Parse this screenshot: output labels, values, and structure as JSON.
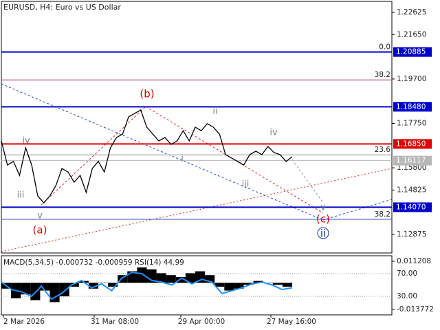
{
  "chart_data": {
    "type": "line",
    "title": "EURUSD, H4:  Euro vs US Dollar",
    "values": [
      1.1698,
      1.1592,
      1.1608,
      1.1547,
      1.1668,
      1.1592,
      1.1457,
      1.1426,
      1.1457,
      1.1502,
      1.1577,
      1.1562,
      1.1517,
      1.1547,
      1.1472,
      1.1577,
      1.1608,
      1.1562,
      1.1668,
      1.1713,
      1.1728,
      1.1804,
      1.1819,
      1.1834,
      1.1758,
      1.1728,
      1.1698,
      1.1713,
      1.1683,
      1.1698,
      1.1743,
      1.1698,
      1.1758,
      1.1743,
      1.1774,
      1.1758,
      1.1728,
      1.1638,
      1.1623,
      1.1608,
      1.1592,
      1.1638,
      1.1653,
      1.1638,
      1.1674,
      1.1647,
      1.1638,
      1.1608,
      1.1629
    ],
    "color": "#000000",
    "ylim": [
      1.12061,
      1.23168
    ],
    "yticks": [
      1.22625,
      {
        "value": 1.2165,
        "label": "1.21650"
      },
      {
        "value": 1.197,
        "label": "1.19700"
      },
      {
        "value": 1.1775,
        "label": "1.17750"
      },
      {
        "value": 1.158,
        "label": "1.15800"
      },
      1.14825,
      1.12875
    ],
    "levels": [
      {
        "value": 1.20885,
        "label": "1.20885",
        "color": "#0000cc"
      },
      {
        "value": 1.1848,
        "label": "1.18480",
        "color": "#0000cc"
      },
      {
        "value": 1.1685,
        "label": "1.16850",
        "color": "#e00000"
      },
      {
        "value": 1.16117,
        "label": "1.16117",
        "color": "#b8b8b8"
      },
      {
        "value": 1.1407,
        "label": "1.14070",
        "color": "#0000cc"
      }
    ],
    "fib_levels": [
      {
        "label": "0.0",
        "price": 1.20885,
        "color": "#0000cc"
      },
      {
        "label": "38.2",
        "price": 1.1966,
        "color": "#a0306a"
      },
      {
        "label": "23.6",
        "price": 1.1637,
        "color": "#909090"
      },
      {
        "label": "38.2",
        "price": 1.1354,
        "color": "#3050c0"
      }
    ],
    "wave_labels": [
      {
        "text": "(b)",
        "color": "#e00000"
      },
      {
        "text": "(a)",
        "color": "#e00000"
      },
      {
        "text": "(c)",
        "color": "#e00000"
      },
      {
        "text": "ii",
        "color": "#1030c0"
      },
      {
        "text": "iv",
        "color": "#808080"
      },
      {
        "text": "iii",
        "color": "#808080"
      },
      {
        "text": "v",
        "color": "#808080"
      },
      {
        "text": "ii",
        "color": "#808080"
      },
      {
        "text": "i",
        "color": "#808080"
      },
      {
        "text": "iii",
        "color": "#808080"
      },
      {
        "text": "iv",
        "color": "#808080"
      },
      {
        "text": "v",
        "color": "#808080"
      }
    ],
    "x_labels": [
      "2 Mar 2026",
      "31 Mar 08:00",
      "29 Apr 00:00",
      "27 May 16:00"
    ],
    "indicator": {
      "title": "MACD(5,34,5) -0.000732 -0.000959 RSI(14) 44.99",
      "macd": [
        -0.003,
        -0.008,
        -0.006,
        -0.009,
        -0.004,
        -0.01,
        -0.007,
        -0.002,
        0.001,
        -0.003,
        0.0,
        -0.002,
        0.004,
        0.006,
        0.008,
        0.007,
        0.005,
        0.004,
        0.003,
        0.005,
        0.006,
        0.004,
        -0.002,
        -0.004,
        -0.003,
        -0.001,
        0.001,
        0.0,
        -0.001,
        -0.002
      ],
      "macd_color": "#000000",
      "macd_ylim": [
        -0.016627,
        0.014063
      ],
      "macd_ticks": [
        0.011208,
        -0.013772
      ],
      "rsi": [
        55,
        42,
        38,
        30,
        48,
        25,
        35,
        50,
        58,
        45,
        52,
        40,
        62,
        72,
        70,
        58,
        55,
        50,
        62,
        52,
        60,
        55,
        35,
        40,
        45,
        52,
        55,
        50,
        42,
        45
      ],
      "rsi_color": "#1e90ff",
      "rsi_ylim": [
        -2.7,
        101.5
      ],
      "rsi_ticks": [
        {
          "value": 70,
          "label": "70.00"
        },
        {
          "value": 30,
          "label": "30.00"
        }
      ]
    }
  }
}
